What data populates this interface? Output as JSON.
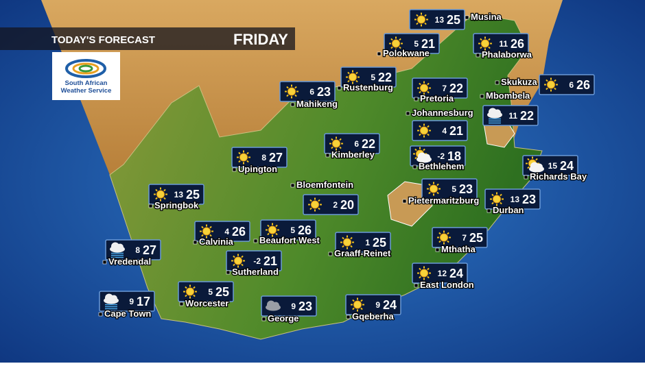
{
  "header": {
    "title": "TODAY'S FORECAST",
    "day": "FRIDAY"
  },
  "logo": {
    "text": "South African Weather Service"
  },
  "cities": [
    {
      "name": "Musina",
      "min": 13,
      "max": 25,
      "icon": "sun"
    },
    {
      "name": "Polokwane",
      "min": 5,
      "max": 21,
      "icon": "sun"
    },
    {
      "name": "Phalaborwa",
      "min": 11,
      "max": 26,
      "icon": "sun"
    },
    {
      "name": "Rustenburg",
      "min": 5,
      "max": 22,
      "icon": "sun"
    },
    {
      "name": "Mahikeng",
      "min": 6,
      "max": 23,
      "icon": "sun"
    },
    {
      "name": "Pretoria",
      "min": 7,
      "max": 22,
      "icon": "sun"
    },
    {
      "name": "Skukuza",
      "min": 6,
      "max": 26,
      "icon": "sun"
    },
    {
      "name": "Johannesburg",
      "min": 4,
      "max": 21,
      "icon": "sun"
    },
    {
      "name": "Mbombela",
      "min": 11,
      "max": 22,
      "icon": "showers"
    },
    {
      "name": "Kimberley",
      "min": 6,
      "max": 22,
      "icon": "sun"
    },
    {
      "name": "Bethlehem",
      "min": -2,
      "max": 18,
      "icon": "partly-cloudy"
    },
    {
      "name": "Upington",
      "min": 8,
      "max": 27,
      "icon": "sun"
    },
    {
      "name": "Richards Bay",
      "min": 15,
      "max": 24,
      "icon": "partly-cloudy"
    },
    {
      "name": "Bloemfontein",
      "min": 2,
      "max": 20,
      "icon": "sun"
    },
    {
      "name": "Springbok",
      "min": 13,
      "max": 25,
      "icon": "sun"
    },
    {
      "name": "Pietermaritzburg",
      "min": 5,
      "max": 23,
      "icon": "sun"
    },
    {
      "name": "Durban",
      "min": 13,
      "max": 23,
      "icon": "sun"
    },
    {
      "name": "Calvinia",
      "min": 4,
      "max": 26,
      "icon": "sun"
    },
    {
      "name": "Beaufort West",
      "min": 5,
      "max": 26,
      "icon": "sun"
    },
    {
      "name": "Graaff-Reinet",
      "min": 1,
      "max": 25,
      "icon": "sun"
    },
    {
      "name": "Mthatha",
      "min": 7,
      "max": 25,
      "icon": "sun"
    },
    {
      "name": "Vredendal",
      "min": 8,
      "max": 27,
      "icon": "showers"
    },
    {
      "name": "Sutherland",
      "min": -2,
      "max": 21,
      "icon": "sun"
    },
    {
      "name": "East London",
      "min": 12,
      "max": 24,
      "icon": "sun"
    },
    {
      "name": "Worcester",
      "min": 5,
      "max": 25,
      "icon": "sun"
    },
    {
      "name": "Cape Town",
      "min": 9,
      "max": 17,
      "icon": "showers"
    },
    {
      "name": "George",
      "min": 9,
      "max": 23,
      "icon": "cloudy"
    },
    {
      "name": "Gqeberha",
      "min": 9,
      "max": 24,
      "icon": "sun"
    }
  ]
}
